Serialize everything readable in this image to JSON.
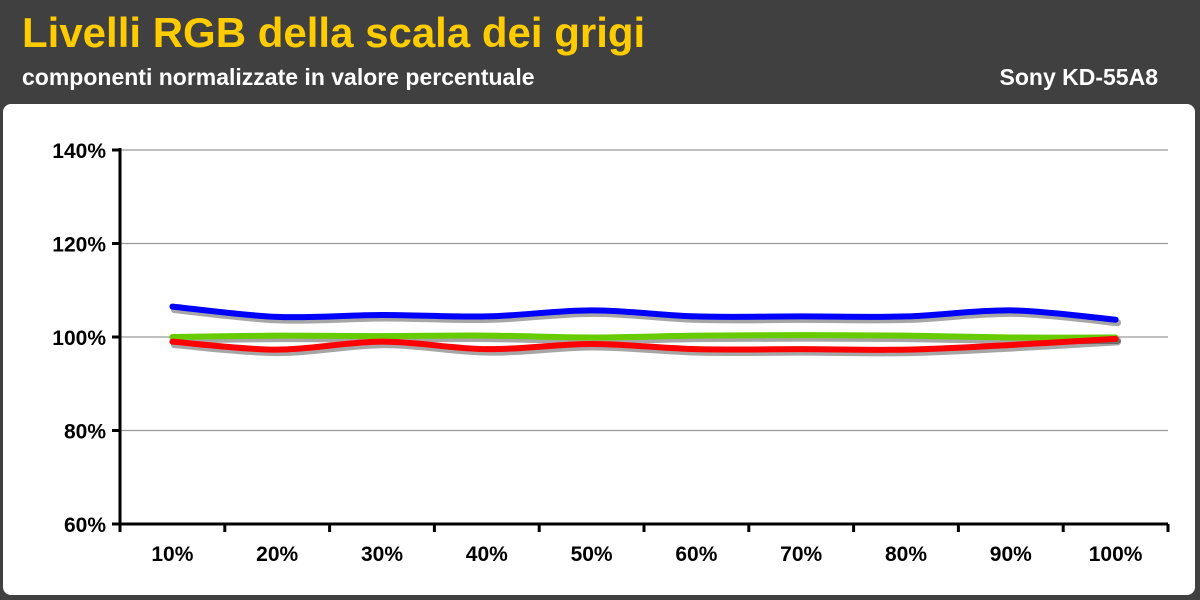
{
  "header": {
    "title": "Livelli RGB della scala dei grigi",
    "subtitle": "componenti normalizzate in valore percentuale",
    "model": "Sony KD-55A8"
  },
  "colors": {
    "background": "#404040",
    "title": "#ffcc00",
    "red": "#ff0000",
    "green": "#66cc00",
    "blue": "#0000ff",
    "grid": "#999999"
  },
  "chart_data": {
    "type": "line",
    "title": "Livelli RGB della scala dei grigi",
    "subtitle": "componenti normalizzate in valore percentuale",
    "categories": [
      "10%",
      "20%",
      "30%",
      "40%",
      "50%",
      "60%",
      "70%",
      "80%",
      "90%",
      "100%"
    ],
    "y_ticks": [
      "60%",
      "80%",
      "100%",
      "120%",
      "140%"
    ],
    "ylim": [
      60,
      140
    ],
    "grid": true,
    "series": [
      {
        "key": "green",
        "color": "#66cc00",
        "values": [
          100,
          100.3,
          100.2,
          100.3,
          99.9,
          100.3,
          100.4,
          100.3,
          99.9,
          99.9
        ]
      },
      {
        "key": "red",
        "color": "#ff0000",
        "values": [
          99.0,
          97.3,
          99.0,
          97.4,
          98.5,
          97.4,
          97.4,
          97.3,
          98.3,
          99.6
        ]
      },
      {
        "key": "blue",
        "color": "#0000ff",
        "values": [
          106.5,
          104.3,
          104.7,
          104.4,
          105.7,
          104.4,
          104.4,
          104.4,
          105.7,
          103.7
        ]
      }
    ]
  }
}
